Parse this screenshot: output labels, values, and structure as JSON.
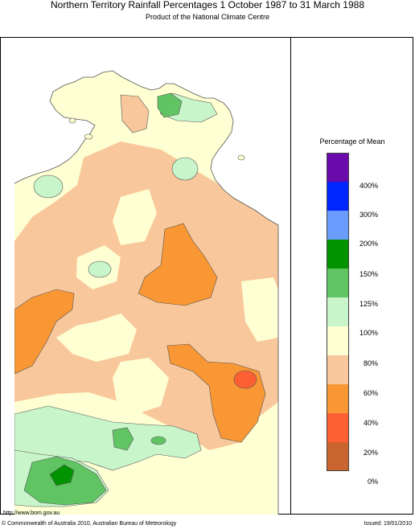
{
  "title": "Northern Territory Rainfall Percentages 1 October 1987 to 31 March 1988",
  "subtitle": "Product of the National Climate Centre",
  "legend": {
    "title": "Percentage of Mean",
    "labels": [
      "400%",
      "300%",
      "200%",
      "150%",
      "125%",
      "100%",
      "80%",
      "60%",
      "40%",
      "20%",
      "0%"
    ],
    "colors": [
      "#6a0aab",
      "#0025ff",
      "#6a9bff",
      "#029300",
      "#61c463",
      "#c9f5cb",
      "#feffd2",
      "#f8c89c",
      "#f99734",
      "#fe6034",
      "#cb6530"
    ]
  },
  "footer": {
    "url": "http://www.bom.gov.au",
    "copyright": "© Commonwealth of Australia 2010, Australian Bureau of Meteorology",
    "issued": "Issued: 19/01/2010"
  }
}
